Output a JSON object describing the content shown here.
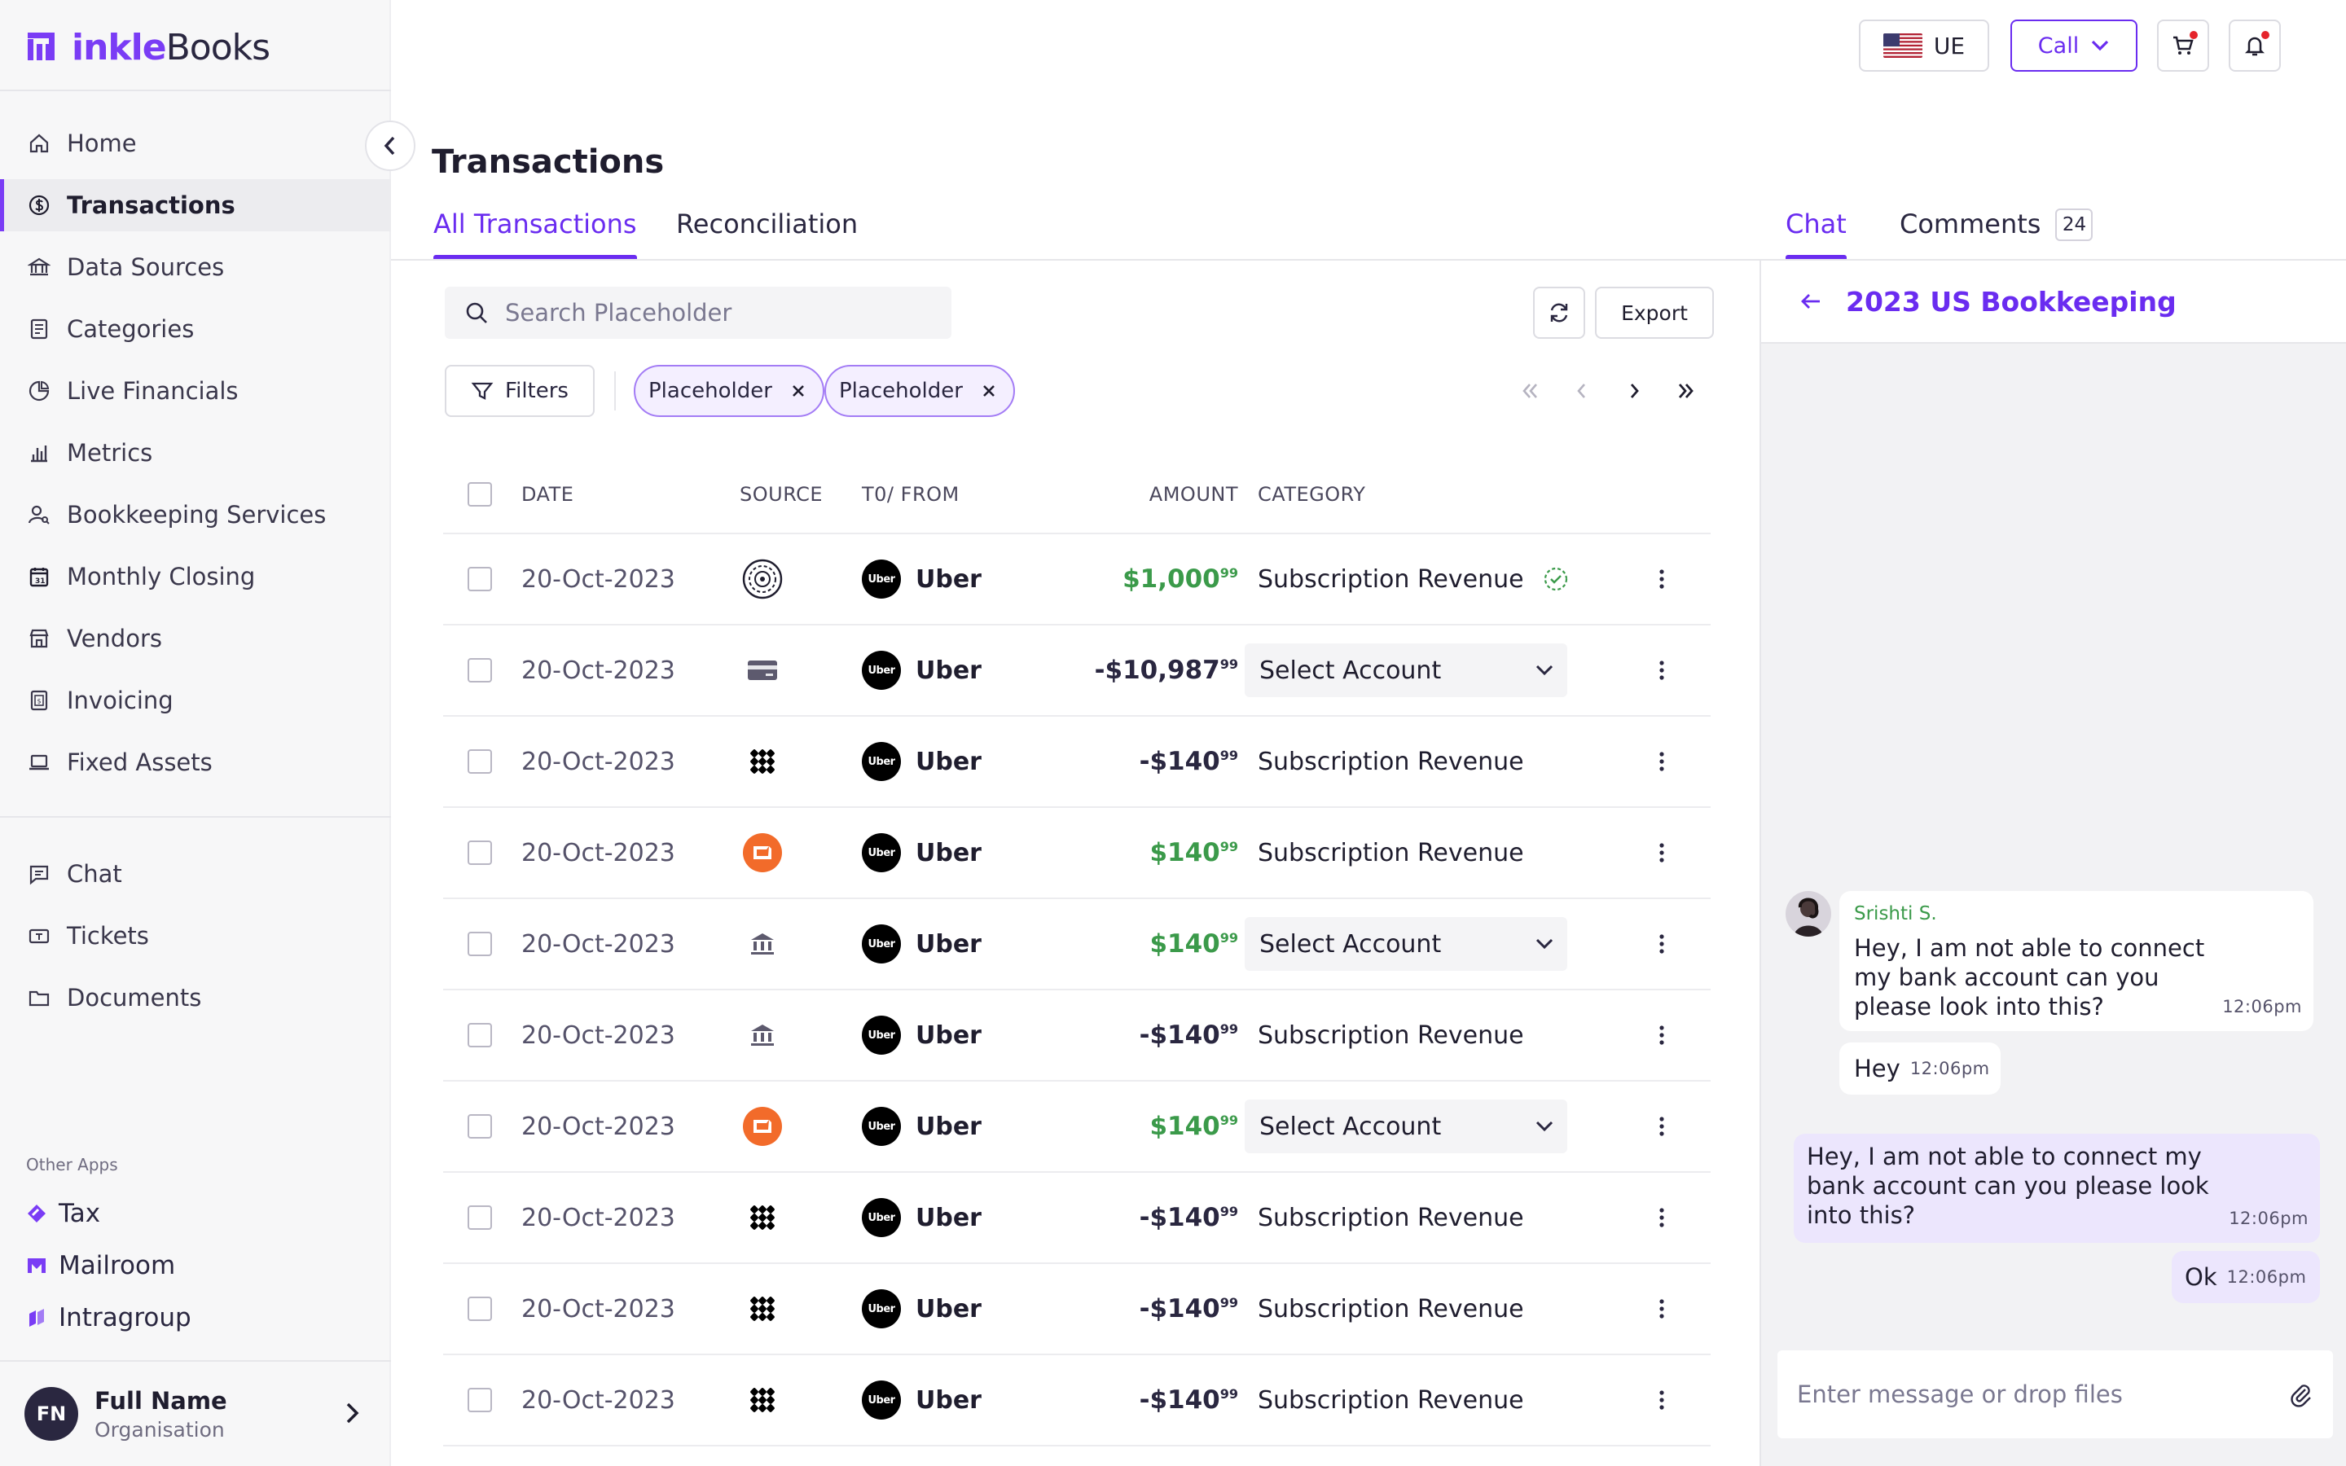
{
  "brand": {
    "part1": "inkle",
    "part2": "Books",
    "accent": "#7a3cf5"
  },
  "sidebar": {
    "items": [
      {
        "label": "Home",
        "icon": "home-icon"
      },
      {
        "label": "Transactions",
        "icon": "dollar-circle-icon",
        "active": true
      },
      {
        "label": "Data Sources",
        "icon": "bank-icon"
      },
      {
        "label": "Categories",
        "icon": "ledger-icon"
      },
      {
        "label": "Live Financials",
        "icon": "pie-chart-icon"
      },
      {
        "label": "Metrics",
        "icon": "bar-chart-icon"
      },
      {
        "label": "Bookkeeping Services",
        "icon": "user-search-icon"
      },
      {
        "label": "Monthly Closing",
        "icon": "calendar-icon"
      },
      {
        "label": "Vendors",
        "icon": "store-icon"
      },
      {
        "label": "Invoicing",
        "icon": "invoice-icon"
      },
      {
        "label": "Fixed Assets",
        "icon": "laptop-icon"
      }
    ],
    "items2": [
      {
        "label": "Chat",
        "icon": "chat-icon"
      },
      {
        "label": "Tickets",
        "icon": "ticket-icon"
      },
      {
        "label": "Documents",
        "icon": "folder-icon"
      }
    ],
    "other_apps_title": "Other Apps",
    "other_apps": [
      {
        "label": "Tax",
        "icon": "tax-icon"
      },
      {
        "label": "Mailroom",
        "icon": "mailroom-icon"
      },
      {
        "label": "Intragroup",
        "icon": "intragroup-icon"
      }
    ],
    "profile": {
      "initials": "FN",
      "name": "Full Name",
      "org": "Organisation"
    }
  },
  "topbar": {
    "entity": "UE",
    "call_label": "Call"
  },
  "page": {
    "title": "Transactions",
    "tabs": [
      "All Transactions",
      "Reconciliation"
    ]
  },
  "toolbar": {
    "search_placeholder": "Search Placeholder",
    "export_label": "Export",
    "filters_label": "Filters",
    "chips": [
      "Placeholder",
      "Placeholder"
    ]
  },
  "table": {
    "headers": {
      "date": "DATE",
      "source": "SOURCE",
      "to_from": "T0/ FROM",
      "amount": "AMOUNT",
      "category": "CATEGORY"
    },
    "rows": [
      {
        "date": "20-Oct-2023",
        "source": "circle-pattern-logo",
        "vendor": "Uber",
        "amount": "$1,000",
        "cents": "99",
        "positive": true,
        "category": "Subscription Revenue",
        "select": false,
        "verified": true
      },
      {
        "date": "20-Oct-2023",
        "source": "card-icon",
        "vendor": "Uber",
        "amount": "-$10,987",
        "cents": "99",
        "positive": false,
        "category": "Select Account",
        "select": true,
        "verified": false
      },
      {
        "date": "20-Oct-2023",
        "source": "grid-pattern-logo",
        "vendor": "Uber",
        "amount": "-$140",
        "cents": "99",
        "positive": false,
        "category": "Subscription Revenue",
        "select": false,
        "verified": false
      },
      {
        "date": "20-Oct-2023",
        "source": "orange-app-logo",
        "vendor": "Uber",
        "amount": "$140",
        "cents": "99",
        "positive": true,
        "category": "Subscription Revenue",
        "select": false,
        "verified": false
      },
      {
        "date": "20-Oct-2023",
        "source": "bank-icon",
        "vendor": "Uber",
        "amount": "$140",
        "cents": "99",
        "positive": true,
        "category": "Select Account",
        "select": true,
        "verified": false
      },
      {
        "date": "20-Oct-2023",
        "source": "bank-icon",
        "vendor": "Uber",
        "amount": "-$140",
        "cents": "99",
        "positive": false,
        "category": "Subscription Revenue",
        "select": false,
        "verified": false
      },
      {
        "date": "20-Oct-2023",
        "source": "orange-app-logo",
        "vendor": "Uber",
        "amount": "$140",
        "cents": "99",
        "positive": true,
        "category": "Select Account",
        "select": true,
        "verified": false
      },
      {
        "date": "20-Oct-2023",
        "source": "grid-pattern-logo",
        "vendor": "Uber",
        "amount": "-$140",
        "cents": "99",
        "positive": false,
        "category": "Subscription Revenue",
        "select": false,
        "verified": false
      },
      {
        "date": "20-Oct-2023",
        "source": "grid-pattern-logo",
        "vendor": "Uber",
        "amount": "-$140",
        "cents": "99",
        "positive": false,
        "category": "Subscription Revenue",
        "select": false,
        "verified": false
      },
      {
        "date": "20-Oct-2023",
        "source": "grid-pattern-logo",
        "vendor": "Uber",
        "amount": "-$140",
        "cents": "99",
        "positive": false,
        "category": "Subscription Revenue",
        "select": false,
        "verified": false
      }
    ]
  },
  "chat": {
    "tabs": {
      "chat": "Chat",
      "comments": "Comments",
      "comments_count": "24"
    },
    "channel_title": "2023 US Bookkeeping",
    "messages": [
      {
        "sender": "Srishti S.",
        "text_lines": [
          "Hey, I am not able to connect",
          "my bank account can you",
          "please look into this?"
        ],
        "time": "12:06pm",
        "mine": false
      },
      {
        "text": "Hey",
        "time": "12:06pm",
        "mine": false
      },
      {
        "text_lines": [
          "Hey, I am not able to connect my",
          "bank account can you please look",
          "into this?"
        ],
        "time": "12:06pm",
        "mine": true
      },
      {
        "text": "Ok",
        "time": "12:06pm",
        "mine": true
      }
    ],
    "input_placeholder": "Enter message or drop files"
  },
  "colors": {
    "accent": "#6a2cf0",
    "positive": "#3b9a4a",
    "chat_mine_bg": "#ece6fd"
  }
}
